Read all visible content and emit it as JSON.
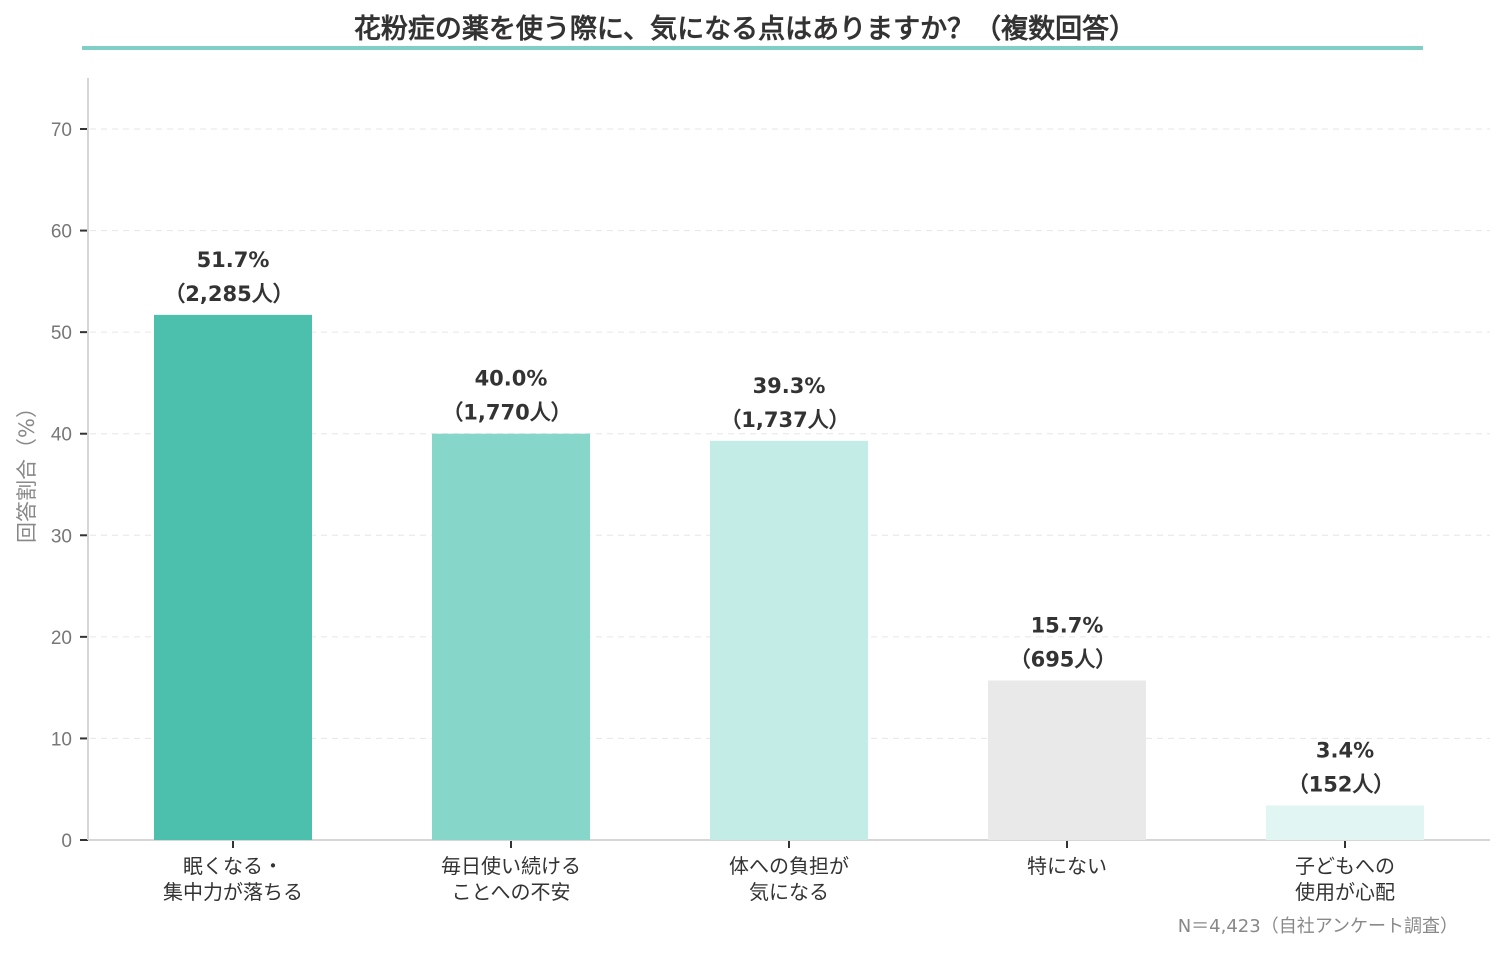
{
  "chart_data": {
    "type": "bar",
    "title": "花粉症の薬を使う際に、気になる点はありますか？（複数回答）",
    "xlabel": "",
    "ylabel": "回答割合（%）",
    "ylim": [
      0,
      75
    ],
    "yticks": [
      0,
      10,
      20,
      30,
      40,
      50,
      60,
      70
    ],
    "grid": true,
    "categories": [
      [
        "眠くなる・",
        "集中力が落ちる"
      ],
      [
        "毎日使い続ける",
        "ことへの不安"
      ],
      [
        "体への負担が",
        "気になる"
      ],
      [
        "特にない"
      ],
      [
        "子どもへの",
        "使用が心配"
      ]
    ],
    "values": [
      51.7,
      40.0,
      39.3,
      15.7,
      3.4
    ],
    "data_labels": [
      [
        "51.7%",
        "（2,285人）"
      ],
      [
        "40.0%",
        "（1,770人）"
      ],
      [
        "39.3%",
        "（1,737人）"
      ],
      [
        "15.7%",
        "（695人）"
      ],
      [
        "3.4%",
        "（152人）"
      ]
    ],
    "colors": [
      "#4dbfad",
      "#86d6c9",
      "#c3ece6",
      "#e9e9e9",
      "#e1f5f2"
    ],
    "accent_color": "#7fcfc6",
    "note": "N＝4,423（自社アンケート調査）"
  }
}
